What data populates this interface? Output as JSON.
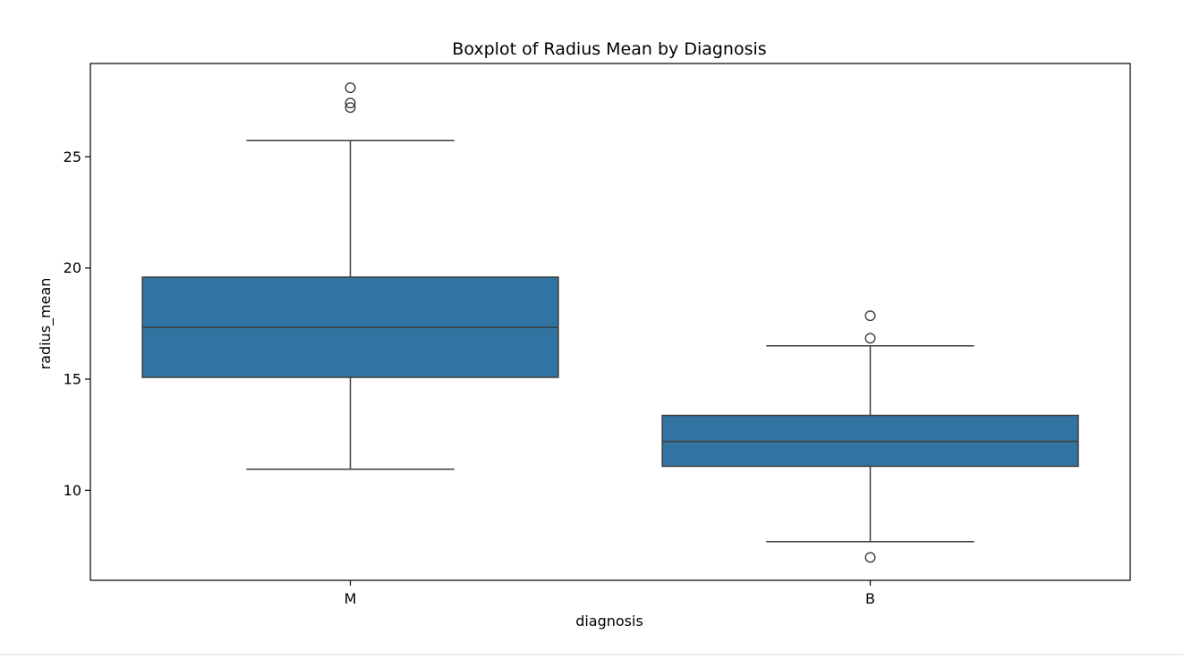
{
  "chart_data": {
    "type": "box",
    "title": "Boxplot of Radius Mean by Diagnosis",
    "xlabel": "diagnosis",
    "ylabel": "radius_mean",
    "categories": [
      "M",
      "B"
    ],
    "ylim": [
      5.95,
      29.2
    ],
    "yticks": [
      10,
      15,
      20,
      25
    ],
    "ytick_labels": [
      "10",
      "15",
      "20",
      "25"
    ],
    "grid": false,
    "legend": "none",
    "box_color": "#3274a1",
    "line_color": "#3d3d3d",
    "boxes": [
      {
        "category": "M",
        "whisker_low": 10.95,
        "q1": 15.08,
        "median": 17.33,
        "q3": 19.59,
        "whisker_high": 25.73,
        "outliers": [
          27.22,
          27.42,
          28.11
        ]
      },
      {
        "category": "B",
        "whisker_low": 7.69,
        "q1": 11.08,
        "median": 12.2,
        "q3": 13.37,
        "whisker_high": 16.5,
        "outliers": [
          6.98,
          16.84,
          17.85
        ]
      }
    ]
  }
}
